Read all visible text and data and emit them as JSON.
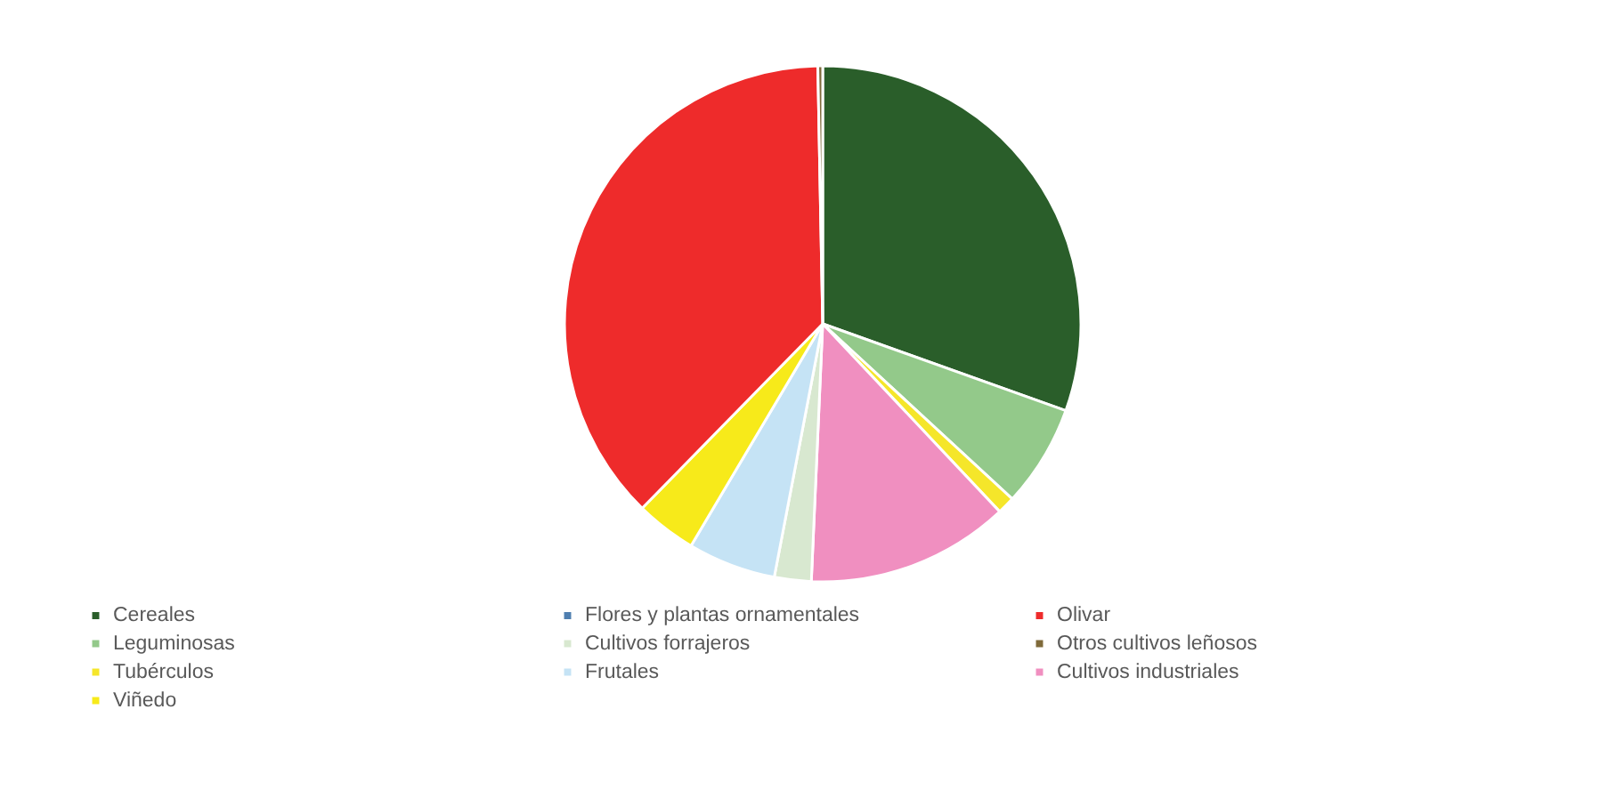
{
  "chart_data": {
    "type": "pie",
    "categories": [
      "Cereales",
      "Leguminosas",
      "Tubérculos",
      "Cultivos industriales",
      "Flores y plantas ornamentales",
      "Cultivos forrajeros",
      "Frutales",
      "Viñedo",
      "Olivar",
      "Otros cultivos leñosos"
    ],
    "values": [
      30.4,
      6.4,
      1.1,
      12.7,
      null,
      2.3,
      5.5,
      3.8,
      37.3,
      0.3
    ],
    "colors": [
      "#2a5e2a",
      "#93c98a",
      "#f5e62a",
      "#f08fc0",
      "#4f7fb0",
      "#d8e8d0",
      "#c5e3f5",
      "#f7ea1a",
      "#ee2b2b",
      "#7f6a3a"
    ],
    "legend": "bottom"
  }
}
